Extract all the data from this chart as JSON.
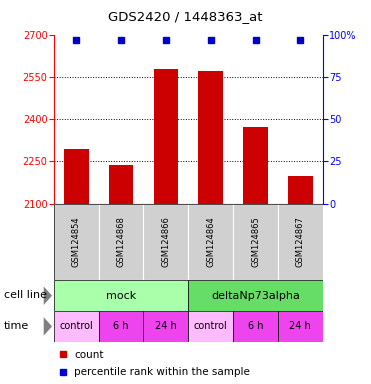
{
  "title": "GDS2420 / 1448363_at",
  "samples": [
    "GSM124854",
    "GSM124868",
    "GSM124866",
    "GSM124864",
    "GSM124865",
    "GSM124867"
  ],
  "bar_values": [
    2295,
    2237,
    2578,
    2572,
    2372,
    2197
  ],
  "percentile_values": [
    97,
    97,
    97,
    97,
    97,
    97
  ],
  "bar_color": "#cc0000",
  "dot_color": "#0000cc",
  "ylim_left": [
    2100,
    2700
  ],
  "ylim_right": [
    0,
    100
  ],
  "yticks_left": [
    2100,
    2250,
    2400,
    2550,
    2700
  ],
  "yticks_right": [
    0,
    25,
    50,
    75,
    100
  ],
  "cell_line_labels": [
    "mock",
    "deltaNp73alpha"
  ],
  "cell_line_spans": [
    [
      0,
      3
    ],
    [
      3,
      6
    ]
  ],
  "cell_line_colors_light": [
    "#aaffaa",
    "#66dd66"
  ],
  "time_labels": [
    "control",
    "6 h",
    "24 h",
    "control",
    "6 h",
    "24 h"
  ],
  "time_color_control": "#ffbbff",
  "time_color_other": "#ee44ee",
  "legend_count_color": "#cc0000",
  "legend_pct_color": "#0000cc",
  "background_color": "#ffffff",
  "sample_box_color": "#d0d0d0",
  "title_fontsize": 9.5,
  "bar_label_fontsize": 6,
  "tick_fontsize": 7,
  "cell_fontsize": 8,
  "time_fontsize": 7,
  "legend_fontsize": 7.5
}
